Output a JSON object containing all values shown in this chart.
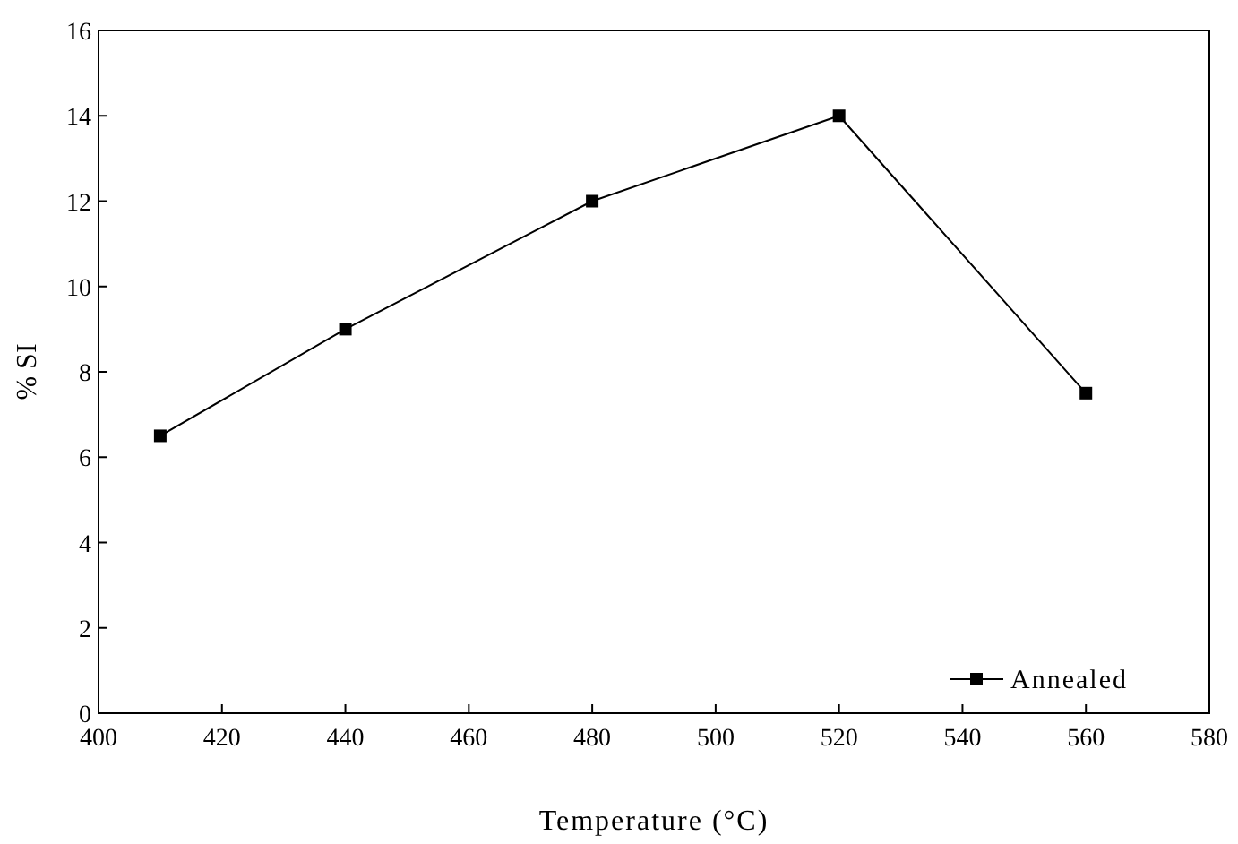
{
  "chart_data": {
    "type": "line",
    "xlabel": "Temperature (°C)",
    "ylabel": "% SI",
    "x": [
      410,
      440,
      480,
      520,
      560
    ],
    "series": [
      {
        "name": "Annealed",
        "color": "#000000",
        "values": [
          6.5,
          9,
          12,
          14,
          7.5
        ]
      }
    ],
    "xlim": [
      400,
      580
    ],
    "xticks": [
      400,
      420,
      440,
      460,
      480,
      500,
      520,
      540,
      560,
      580
    ],
    "ylim": [
      0,
      16
    ],
    "yticks": [
      0,
      2,
      4,
      6,
      8,
      10,
      12,
      14,
      16
    ],
    "grid": false,
    "legend": "bottom right",
    "marker": "square",
    "line_style": "solid"
  }
}
